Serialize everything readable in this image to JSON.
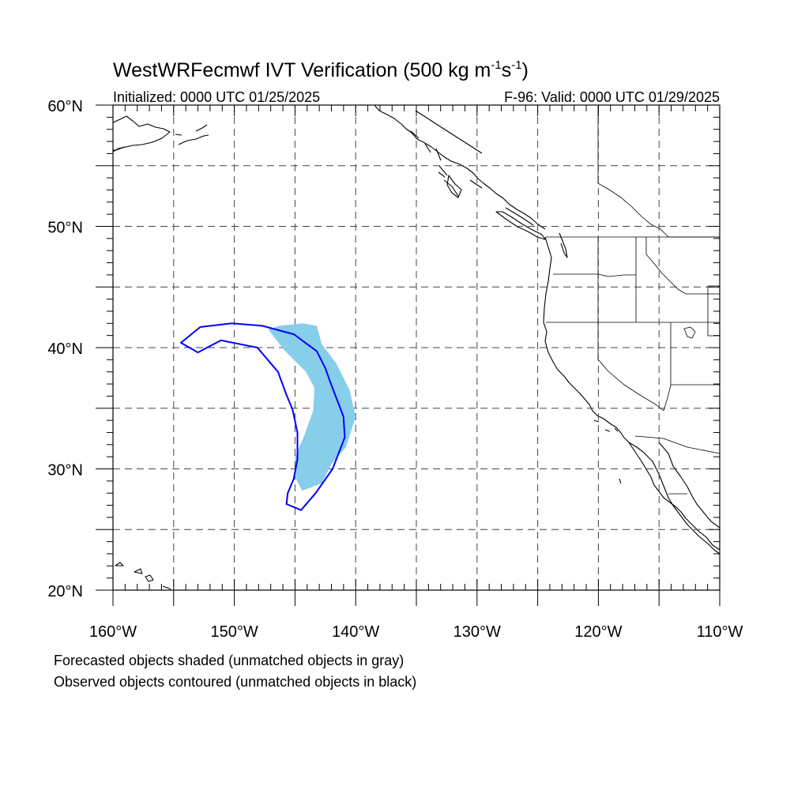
{
  "header": {
    "title_main": "WestWRFecmwf IVT Verification (500 kg m",
    "title_exp1": "-1",
    "title_s": "s",
    "title_exp2": "-1",
    "title_close": ")",
    "initialized": "Initialized: 0000 UTC 01/25/2025",
    "valid": "F-96: Valid: 0000 UTC 01/29/2025"
  },
  "axes": {
    "lon_range": [
      -160,
      -110
    ],
    "lat_range": [
      20,
      60
    ],
    "lat_labels": [
      {
        "value": 60,
        "text": "60°N"
      },
      {
        "value": 50,
        "text": "50°N"
      },
      {
        "value": 40,
        "text": "40°N"
      },
      {
        "value": 30,
        "text": "30°N"
      },
      {
        "value": 20,
        "text": "20°N"
      }
    ],
    "lon_labels": [
      {
        "value": -160,
        "text": "160°W"
      },
      {
        "value": -150,
        "text": "150°W"
      },
      {
        "value": -140,
        "text": "140°W"
      },
      {
        "value": -130,
        "text": "130°W"
      },
      {
        "value": -120,
        "text": "120°W"
      },
      {
        "value": -110,
        "text": "110°W"
      }
    ],
    "grid": "dashed every 5°"
  },
  "colors": {
    "forecast_fill": "#87CEEB",
    "observed_contour": "#0000FF",
    "coastline": "#000000",
    "grid": "#444444"
  },
  "objects": {
    "forecast_shaded": [
      [
        -146.3,
        41.8
      ],
      [
        -144.4,
        42.0
      ],
      [
        -143.2,
        41.8
      ],
      [
        -142.8,
        40.3
      ],
      [
        -141.6,
        38.7
      ],
      [
        -140.5,
        36.5
      ],
      [
        -140.0,
        34.3
      ],
      [
        -140.8,
        31.8
      ],
      [
        -142.0,
        30.4
      ],
      [
        -142.8,
        28.8
      ],
      [
        -144.4,
        28.2
      ],
      [
        -144.9,
        29.1
      ],
      [
        -145.0,
        31.0
      ],
      [
        -144.3,
        32.6
      ],
      [
        -143.5,
        34.8
      ],
      [
        -143.4,
        36.7
      ],
      [
        -144.1,
        38.0
      ],
      [
        -145.9,
        39.8
      ],
      [
        -147.2,
        41.5
      ]
    ],
    "observed_contour": [
      [
        -154.4,
        40.4
      ],
      [
        -152.8,
        41.7
      ],
      [
        -150.2,
        42.0
      ],
      [
        -147.7,
        41.8
      ],
      [
        -145.1,
        41.1
      ],
      [
        -143.2,
        39.7
      ],
      [
        -142.5,
        38.3
      ],
      [
        -142.0,
        36.9
      ],
      [
        -141.5,
        35.6
      ],
      [
        -141.0,
        34.3
      ],
      [
        -140.9,
        32.6
      ],
      [
        -141.9,
        30.0
      ],
      [
        -143.3,
        28.0
      ],
      [
        -144.5,
        26.6
      ],
      [
        -145.7,
        27.1
      ],
      [
        -145.6,
        28.0
      ],
      [
        -145.1,
        29.2
      ],
      [
        -144.8,
        30.8
      ],
      [
        -144.8,
        33.0
      ],
      [
        -145.2,
        34.9
      ],
      [
        -145.7,
        36.1
      ],
      [
        -146.4,
        38.0
      ],
      [
        -148.1,
        40.0
      ],
      [
        -151.1,
        40.6
      ],
      [
        -153.0,
        39.6
      ],
      [
        -154.4,
        40.4
      ]
    ],
    "matched": true
  },
  "footer": {
    "line1": "Forecasted objects shaded (unmatched objects in gray)",
    "line2": "Observed objects contoured (unmatched objects in black)"
  }
}
